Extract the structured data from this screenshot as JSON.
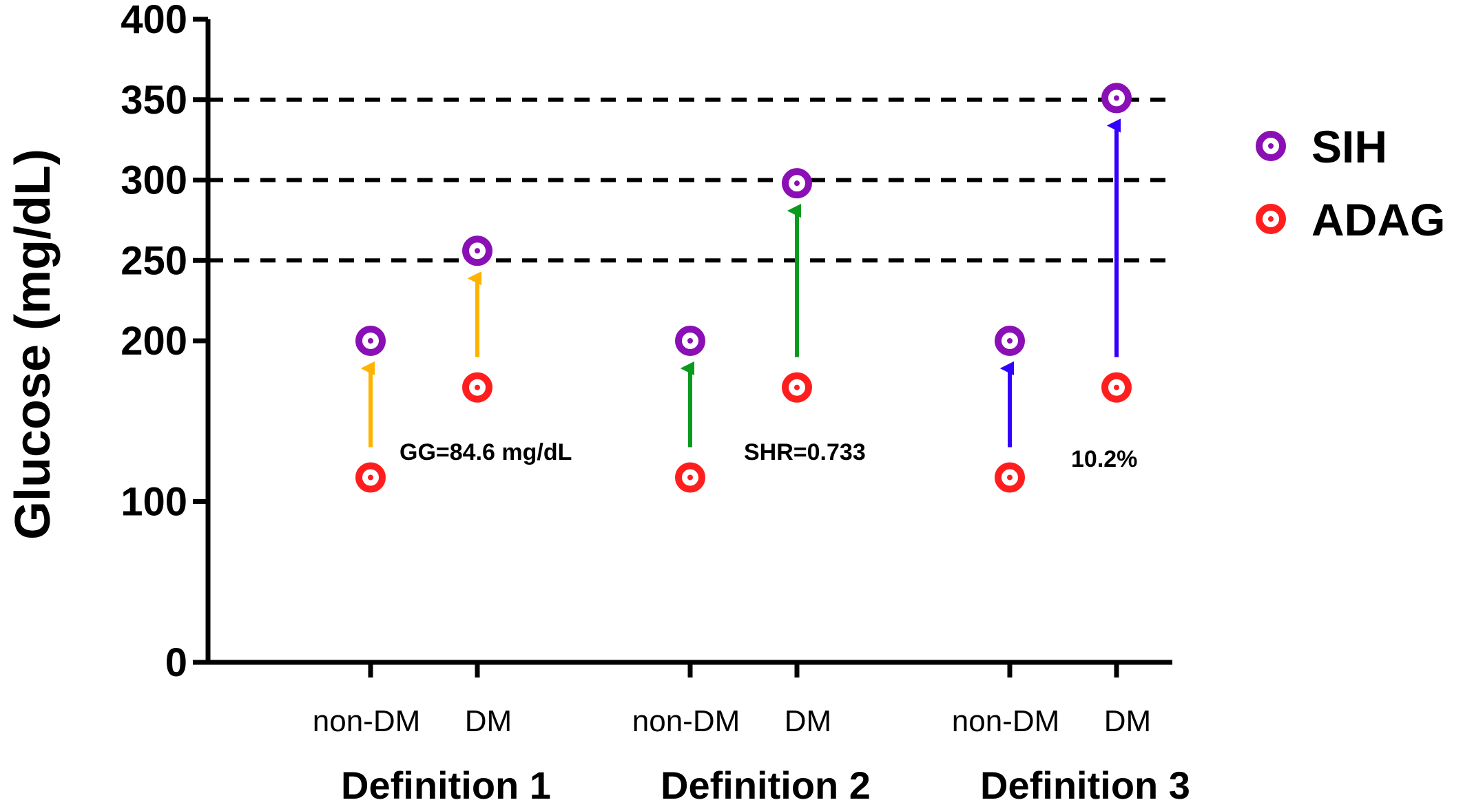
{
  "chart_data": {
    "type": "scatter",
    "ylabel": "Glucose (mg/dL)",
    "ylim": [
      0,
      400
    ],
    "yticks": [
      {
        "value": 0,
        "label": "0"
      },
      {
        "value": 100,
        "label": "100"
      },
      {
        "value": 200,
        "label": "200"
      },
      {
        "value": 250,
        "label": "250"
      },
      {
        "value": 300,
        "label": "300"
      },
      {
        "value": 350,
        "label": "350"
      },
      {
        "value": 400,
        "label": "400"
      }
    ],
    "reference_lines": [
      250,
      300,
      350
    ],
    "groups": [
      {
        "label": "Definition 1",
        "annotation": "GG=84.6 mg/dL",
        "arrow_color": "#FFB300",
        "categories": [
          {
            "label": "non-DM",
            "SIH": 200,
            "ADAG": 115
          },
          {
            "label": "DM",
            "SIH": 256,
            "ADAG": 171
          }
        ]
      },
      {
        "label": "Definition 2",
        "annotation": "SHR=0.733",
        "arrow_color": "#0A9A1E",
        "categories": [
          {
            "label": "non-DM",
            "SIH": 200,
            "ADAG": 115
          },
          {
            "label": "DM",
            "SIH": 298,
            "ADAG": 171
          }
        ]
      },
      {
        "label": "Definition 3",
        "annotation": "10.2%",
        "arrow_color": "#3300FF",
        "categories": [
          {
            "label": "non-DM",
            "SIH": 200,
            "ADAG": 115
          },
          {
            "label": "DM",
            "SIH": 351,
            "ADAG": 171
          }
        ]
      }
    ],
    "series": [
      {
        "name": "SIH",
        "color": "#8A0FB5"
      },
      {
        "name": "ADAG",
        "color": "#FF1E1E"
      }
    ],
    "legend": [
      {
        "label": "SIH",
        "color": "#8A0FB5"
      },
      {
        "label": "ADAG",
        "color": "#FF1E1E"
      }
    ],
    "legend_position": "right"
  }
}
